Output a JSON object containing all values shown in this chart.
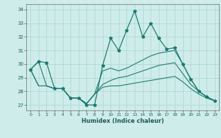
{
  "xlabel": "Humidex (Indice chaleur)",
  "xlim": [
    -0.5,
    23.5
  ],
  "ylim": [
    26.6,
    34.4
  ],
  "yticks": [
    27,
    28,
    29,
    30,
    31,
    32,
    33,
    34
  ],
  "xticks": [
    0,
    1,
    2,
    3,
    4,
    5,
    6,
    7,
    8,
    9,
    10,
    11,
    12,
    13,
    14,
    15,
    16,
    17,
    18,
    19,
    20,
    21,
    22,
    23
  ],
  "bg_color": "#ceecea",
  "grid_color": "#a8d4d0",
  "line_color": "#1a7a6e",
  "lines": [
    {
      "x": [
        0,
        1,
        2,
        3,
        4,
        5,
        6,
        7,
        8,
        9,
        10,
        11,
        12,
        13,
        14,
        15,
        16,
        17,
        18,
        19,
        20,
        21,
        22,
        23
      ],
      "y": [
        29.6,
        30.2,
        30.1,
        28.2,
        28.2,
        27.5,
        27.5,
        27.0,
        27.0,
        29.9,
        31.9,
        31.0,
        32.5,
        33.9,
        32.0,
        33.0,
        31.9,
        31.1,
        31.2,
        30.0,
        28.9,
        28.0,
        27.6,
        27.3
      ],
      "marker": "*",
      "markersize": 3.5,
      "linewidth": 0.9
    },
    {
      "x": [
        0,
        1,
        2,
        3,
        4,
        5,
        6,
        7,
        8,
        9,
        10,
        11,
        12,
        13,
        14,
        15,
        16,
        17,
        18,
        19,
        20,
        21,
        22,
        23
      ],
      "y": [
        29.6,
        30.2,
        28.4,
        28.2,
        28.2,
        27.5,
        27.5,
        27.1,
        27.8,
        29.5,
        29.7,
        29.5,
        29.7,
        30.0,
        30.3,
        30.6,
        30.8,
        30.9,
        31.0,
        30.0,
        28.9,
        28.0,
        27.6,
        27.3
      ],
      "marker": null,
      "markersize": 0,
      "linewidth": 0.8
    },
    {
      "x": [
        0,
        1,
        2,
        3,
        4,
        5,
        6,
        7,
        8,
        9,
        10,
        11,
        12,
        13,
        14,
        15,
        16,
        17,
        18,
        19,
        20,
        21,
        22,
        23
      ],
      "y": [
        29.6,
        28.4,
        28.4,
        28.2,
        28.2,
        27.5,
        27.5,
        27.1,
        27.8,
        28.5,
        28.8,
        29.0,
        29.1,
        29.3,
        29.5,
        29.7,
        29.9,
        30.0,
        30.1,
        29.3,
        28.5,
        28.0,
        27.6,
        27.3
      ],
      "marker": null,
      "markersize": 0,
      "linewidth": 0.8
    },
    {
      "x": [
        0,
        1,
        2,
        3,
        4,
        5,
        6,
        7,
        8,
        9,
        10,
        11,
        12,
        13,
        14,
        15,
        16,
        17,
        18,
        19,
        20,
        21,
        22,
        23
      ],
      "y": [
        29.6,
        28.4,
        28.4,
        28.2,
        28.2,
        27.5,
        27.5,
        27.1,
        27.8,
        28.3,
        28.4,
        28.4,
        28.5,
        28.6,
        28.7,
        28.8,
        28.9,
        29.0,
        29.1,
        28.7,
        28.2,
        27.8,
        27.5,
        27.3
      ],
      "marker": null,
      "markersize": 0,
      "linewidth": 0.8
    }
  ]
}
